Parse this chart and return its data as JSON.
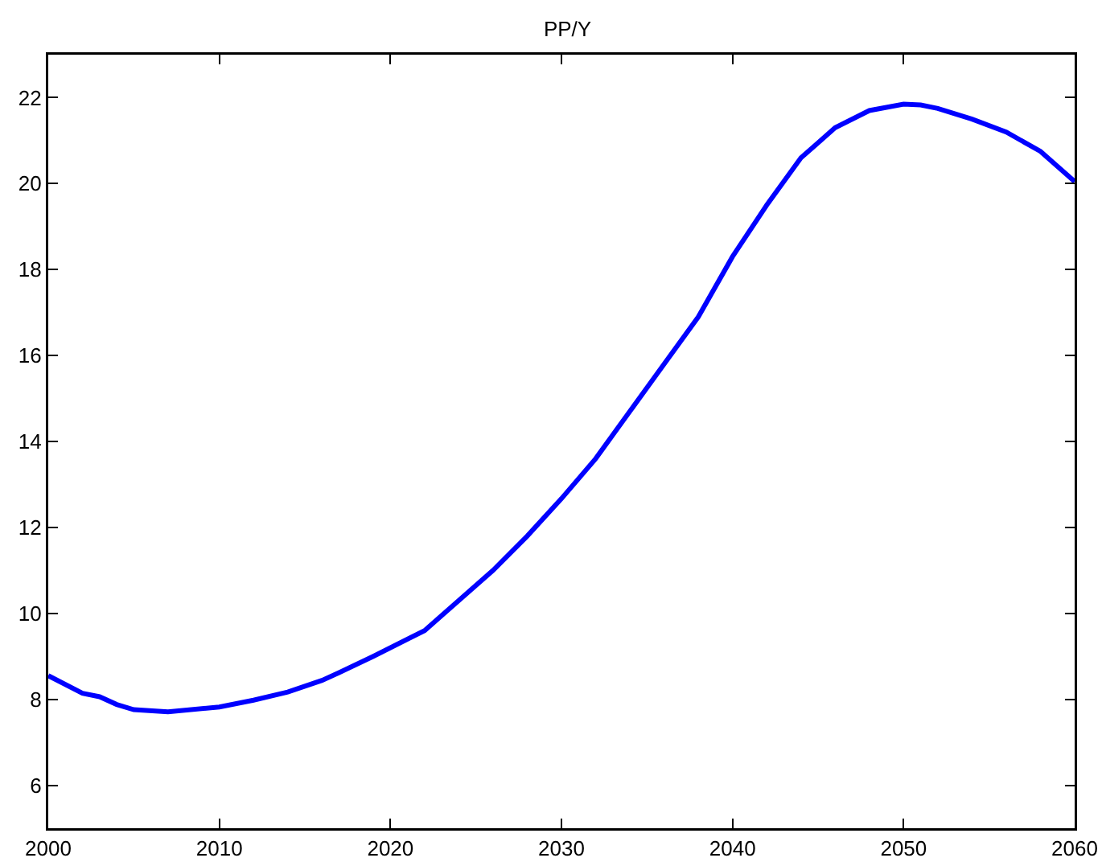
{
  "chart_data": {
    "type": "line",
    "title": "PP/Y",
    "x": [
      2000,
      2002,
      2003,
      2004,
      2005,
      2007,
      2010,
      2012,
      2014,
      2016,
      2017,
      2019,
      2022,
      2024,
      2026,
      2028,
      2030,
      2032,
      2034,
      2036,
      2038,
      2040,
      2042,
      2044,
      2046,
      2048,
      2050,
      2051,
      2052,
      2054,
      2056,
      2058,
      2060
    ],
    "series": [
      {
        "color": "#0000ff",
        "values": [
          8.55,
          8.14,
          8.06,
          7.88,
          7.76,
          7.71,
          7.82,
          7.98,
          8.17,
          8.44,
          8.62,
          9.0,
          9.6,
          10.3,
          11.0,
          11.8,
          12.67,
          13.6,
          14.7,
          15.8,
          16.9,
          18.3,
          19.5,
          20.6,
          21.3,
          21.7,
          21.85,
          21.83,
          21.75,
          21.5,
          21.2,
          20.75,
          20.05
        ]
      }
    ],
    "xlim": [
      2000,
      2060
    ],
    "xticks": [
      2000,
      2010,
      2020,
      2030,
      2040,
      2050,
      2060
    ],
    "ylim": [
      5,
      23
    ],
    "yticks": [
      6,
      8,
      10,
      12,
      14,
      16,
      18,
      20,
      22
    ],
    "grid": false
  }
}
